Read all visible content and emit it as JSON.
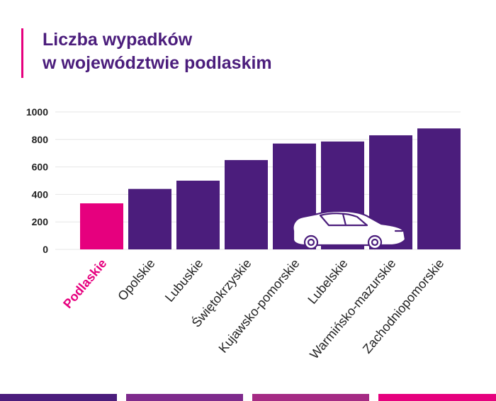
{
  "header": {
    "title_line1": "Liczba wypadków",
    "title_line2": "w województwie podlaskim"
  },
  "colors": {
    "accent": "#e6007e",
    "primary": "#4b1d7c",
    "highlight_bar": "#e6007e",
    "bar": "#4b1d7c",
    "footer": [
      "#4b1d7c",
      "#7e2a8c",
      "#a52a84",
      "#e6007e"
    ]
  },
  "icons": [
    "car-outline-icon"
  ],
  "chart_data": {
    "type": "bar",
    "categories": [
      "Podlaskie",
      "Opolskie",
      "Lubuskie",
      "Świętokrzyskie",
      "Kujawsko-pomorskie",
      "Lubelskie",
      "Warmińsko-mazurskie",
      "Zachodniopomorskie"
    ],
    "values": [
      335,
      440,
      500,
      650,
      770,
      785,
      830,
      880
    ],
    "highlight_index": 0,
    "yticks": [
      0,
      200,
      400,
      600,
      800,
      1000
    ],
    "ylim": [
      0,
      1000
    ],
    "grid": true
  }
}
